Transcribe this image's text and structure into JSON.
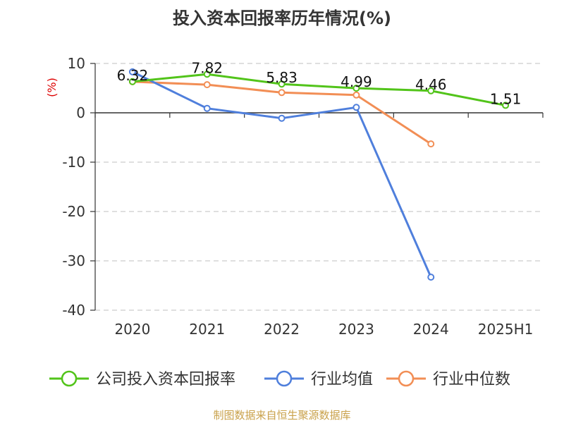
{
  "chart_data": {
    "type": "line",
    "title": "投入资本回报率历年情况(%)",
    "ylabel": "(%)",
    "xlabel": "",
    "categories": [
      "2020",
      "2021",
      "2022",
      "2023",
      "2024",
      "2025H1"
    ],
    "ylim": [
      -40,
      10
    ],
    "yticks": [
      10,
      0,
      -10,
      -20,
      -30,
      -40
    ],
    "grid": true,
    "legend": "bottom",
    "series": [
      {
        "name": "公司投入资本回报率",
        "color": "#52c41a",
        "values": [
          6.32,
          7.82,
          5.83,
          4.99,
          4.46,
          1.51
        ],
        "labels": [
          "6.32",
          "7.82",
          "5.83",
          "4.99",
          "4.46",
          "1.51"
        ]
      },
      {
        "name": "行业均值",
        "color": "#4f7fdc",
        "values": [
          8.3,
          0.9,
          -1.1,
          1.1,
          -33.3,
          null
        ]
      },
      {
        "name": "行业中位数",
        "color": "#f28e55",
        "values": [
          6.3,
          5.7,
          4.1,
          3.6,
          -6.3,
          null
        ]
      }
    ]
  },
  "source": "制图数据来自恒生聚源数据库"
}
